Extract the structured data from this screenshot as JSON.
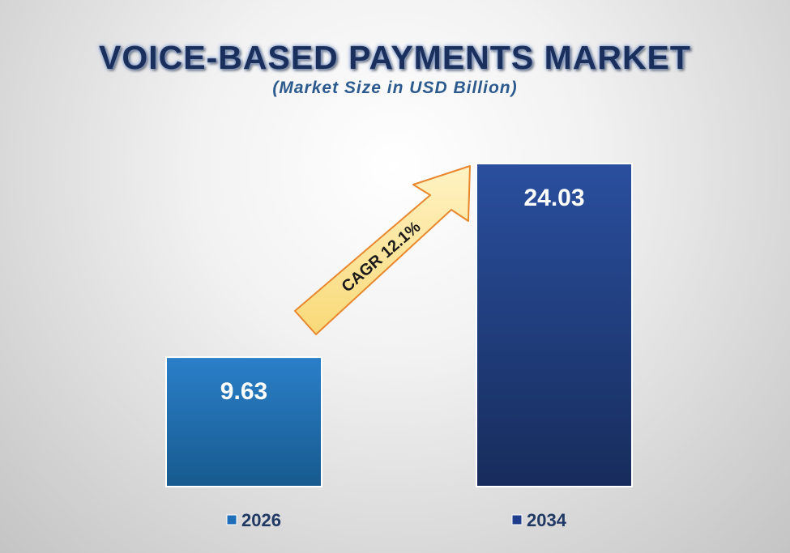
{
  "chart_data": {
    "type": "bar",
    "title": "VOICE-BASED PAYMENTS MARKET",
    "subtitle": "(Market Size in USD Billion)",
    "categories": [
      "2026",
      "2034"
    ],
    "values": [
      9.63,
      24.03
    ],
    "value_labels": [
      "9.63",
      "24.03"
    ],
    "colors": [
      "#1f6fb8",
      "#1f3f8e"
    ],
    "annotation": "CAGR  12.1%",
    "legend_position": "bottom",
    "grid": false
  }
}
